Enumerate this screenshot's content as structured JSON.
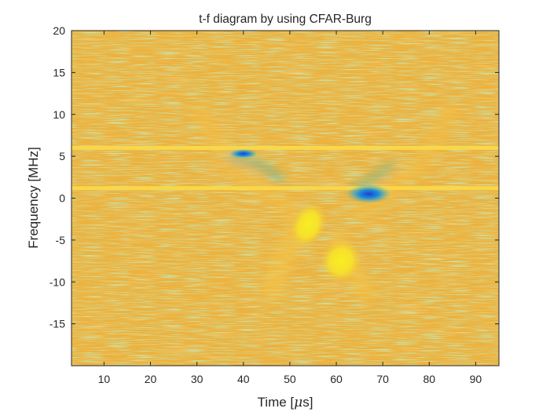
{
  "chart_data": {
    "type": "heatmap",
    "title": "t-f diagram by using CFAR-Burg",
    "xlabel_prefix": "Time [",
    "xlabel_unit_symbol": "μ",
    "xlabel_suffix": "s]",
    "ylabel": "Frequency [MHz]",
    "xlim": [
      3,
      95
    ],
    "ylim": [
      -20,
      20
    ],
    "x_ticks": [
      10,
      20,
      30,
      40,
      50,
      60,
      70,
      80,
      90
    ],
    "y_ticks": [
      20,
      15,
      10,
      5,
      0,
      -5,
      -10,
      -15
    ],
    "colormap": "parula",
    "colors": {
      "background": "#ecb23e",
      "noise_green": "#a2c35b",
      "noise_orange": "#f2b248",
      "high": "#f5e62a",
      "low": "#1f4ed8",
      "mid_cyan": "#37b5c9"
    },
    "horizontal_lines_mhz": [
      6,
      1.2
    ],
    "features": [
      {
        "type": "hot_blob",
        "t": 54,
        "f": -3.2,
        "level": "high"
      },
      {
        "type": "hot_blob",
        "t": 61,
        "f": -7.5,
        "level": "high"
      },
      {
        "type": "cold_blob",
        "t": 67,
        "f": 0.5,
        "level": "low"
      },
      {
        "type": "cold_blob",
        "t": 40,
        "f": 5.3,
        "level": "low"
      }
    ]
  }
}
